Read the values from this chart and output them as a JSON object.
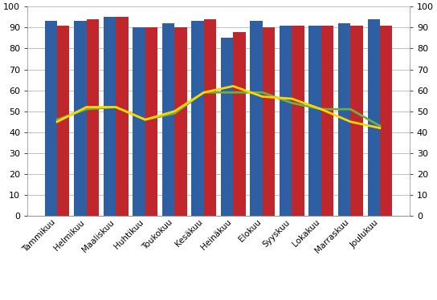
{
  "months": [
    "Tammikuu",
    "Helmikuu",
    "Maaliskuu",
    "Huhtikuu",
    "Toukokuu",
    "Kesäkuu",
    "Heinäkuu",
    "Elokuu",
    "Syyskuu",
    "Lokakuu",
    "Marraskuu",
    "Joulukuu"
  ],
  "keskihinta_2014": [
    93,
    93,
    95,
    90,
    92,
    93,
    85,
    93,
    91,
    91,
    92,
    94
  ],
  "keskihinta_2015": [
    91,
    94,
    95,
    90,
    90,
    94,
    88,
    90,
    91,
    91,
    91,
    91
  ],
  "kayttaste_2014": [
    46,
    51,
    52,
    46,
    49,
    59,
    59,
    59,
    54,
    51,
    51,
    43
  ],
  "kayttaste_2015": [
    45,
    52,
    52,
    46,
    50,
    59,
    62,
    57,
    56,
    51,
    45,
    42
  ],
  "bar_color_2014": "#2E5FA3",
  "bar_color_2015": "#C0272D",
  "line_color_2014": "#70AD47",
  "line_color_2015": "#FFD700",
  "ylim": [
    0,
    100
  ],
  "yticks": [
    0,
    10,
    20,
    30,
    40,
    50,
    60,
    70,
    80,
    90,
    100
  ],
  "bar_width": 0.42,
  "figsize": [
    5.44,
    3.74
  ],
  "dpi": 100
}
